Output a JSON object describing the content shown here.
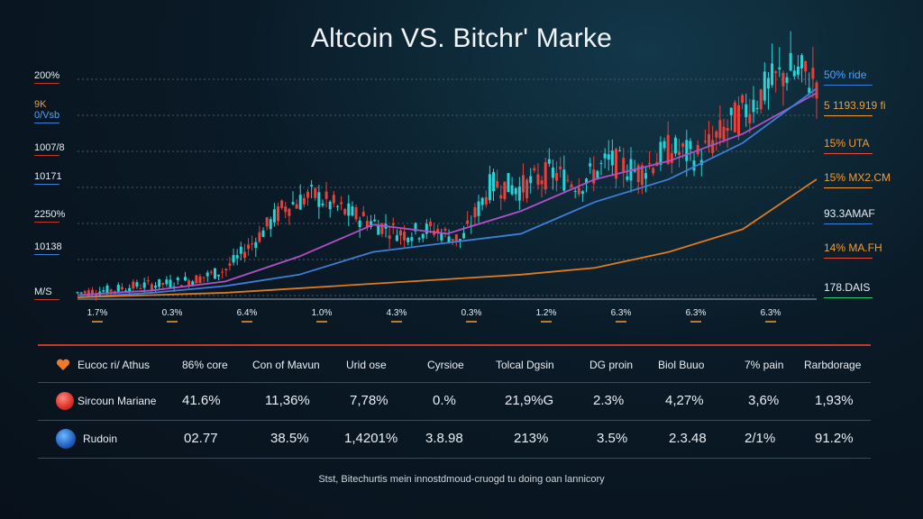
{
  "title": "Altcoin VS. Bitchr' Marke",
  "chart_data": {
    "type": "line",
    "title": "Altcoin VS. Bitchr' Marke",
    "y_left_labels": [
      {
        "lines": [
          "200%"
        ],
        "color": "#e8eef4"
      },
      {
        "lines": [
          "9K",
          "0/Vsb"
        ],
        "color": "#f39c34"
      },
      {
        "lines": [
          "1007/8"
        ],
        "color": "#e8eef4"
      },
      {
        "lines": [
          "10171"
        ],
        "color": "#e8eef4"
      },
      {
        "lines": [
          "2250%"
        ],
        "color": "#e8eef4"
      },
      {
        "lines": [
          "10138"
        ],
        "color": "#e8eef4"
      },
      {
        "lines": [
          "M/S"
        ],
        "color": "#e8eef4"
      }
    ],
    "x_tick_labels": [
      "1.7%",
      "0.3%",
      "6.4%",
      "1.0%",
      "4.3%",
      "0.3%",
      "1.2%",
      "6.3%",
      "6.3%",
      "6.3%"
    ],
    "right_labels": [
      {
        "text": "50% ride",
        "color": "#4aa3ff"
      },
      {
        "text": "5 1193.919 fi",
        "color": "#f39c34"
      },
      {
        "text": "15% UTA",
        "color": "#f39c34"
      },
      {
        "text": "15% MX2.CM",
        "color": "#f39c34"
      },
      {
        "text": "93.3AMAF",
        "color": "#e8eef4"
      },
      {
        "text": "14% MA.FH",
        "color": "#f39c34"
      },
      {
        "text": "178.DAIS",
        "color": "#e8eef4"
      }
    ],
    "series": [
      {
        "role": "candles",
        "x": [
          0,
          4,
          8,
          12,
          16,
          20,
          24,
          28,
          32,
          36,
          40,
          44,
          48,
          52,
          56,
          60,
          64,
          68,
          72,
          76,
          80,
          84,
          88,
          92,
          96,
          100
        ],
        "values": [
          2,
          3,
          5,
          6,
          8,
          12,
          25,
          40,
          45,
          38,
          33,
          28,
          30,
          25,
          50,
          48,
          55,
          50,
          60,
          55,
          65,
          62,
          75,
          88,
          100,
          96
        ]
      },
      {
        "role": "purple-line",
        "color": "#b04fc6",
        "x": [
          0,
          10,
          20,
          30,
          40,
          50,
          60,
          70,
          80,
          90,
          100
        ],
        "values": [
          1,
          3,
          7,
          18,
          32,
          28,
          38,
          52,
          60,
          72,
          90
        ]
      },
      {
        "role": "blue-line",
        "color": "#3d7fd8",
        "x": [
          0,
          10,
          20,
          30,
          40,
          50,
          60,
          70,
          80,
          90,
          100
        ],
        "values": [
          0,
          2,
          5,
          10,
          20,
          24,
          28,
          42,
          52,
          68,
          92
        ]
      },
      {
        "role": "orange-line",
        "color": "#e07a22",
        "x": [
          0,
          10,
          20,
          30,
          40,
          50,
          60,
          70,
          80,
          90,
          100
        ],
        "values": [
          0,
          1,
          2,
          4,
          6,
          8,
          10,
          13,
          20,
          30,
          52
        ]
      }
    ]
  },
  "table": {
    "headers": [
      "Eucoc ri/ Athus",
      "86% core",
      "Con of Mavun",
      "Urid ose",
      "Cyrsioe",
      "Tolcal Dgsin",
      "DG proin",
      "Biol Buuo",
      "7% pain",
      "Rarbdorage"
    ],
    "rows": [
      {
        "icon": "red-coin-icon",
        "cells": [
          "Sircoun Mariane",
          "41.6%",
          "11,36%",
          "7,78%",
          "0.%",
          "21,9%G",
          "2.3%",
          "4,27%",
          "3,6%",
          "1,93%"
        ]
      },
      {
        "icon": "blue-coin-icon",
        "cells": [
          "Rudoin",
          "02.77",
          "38.5%",
          "1,4201%",
          "3.8.98",
          "213%",
          "3.5%",
          "2.3.48",
          "2/1%",
          "91.2%"
        ]
      }
    ]
  },
  "footer": "Stst, Bitechurtis mein innostdmoud-cruogd tu doing oan lannicory"
}
